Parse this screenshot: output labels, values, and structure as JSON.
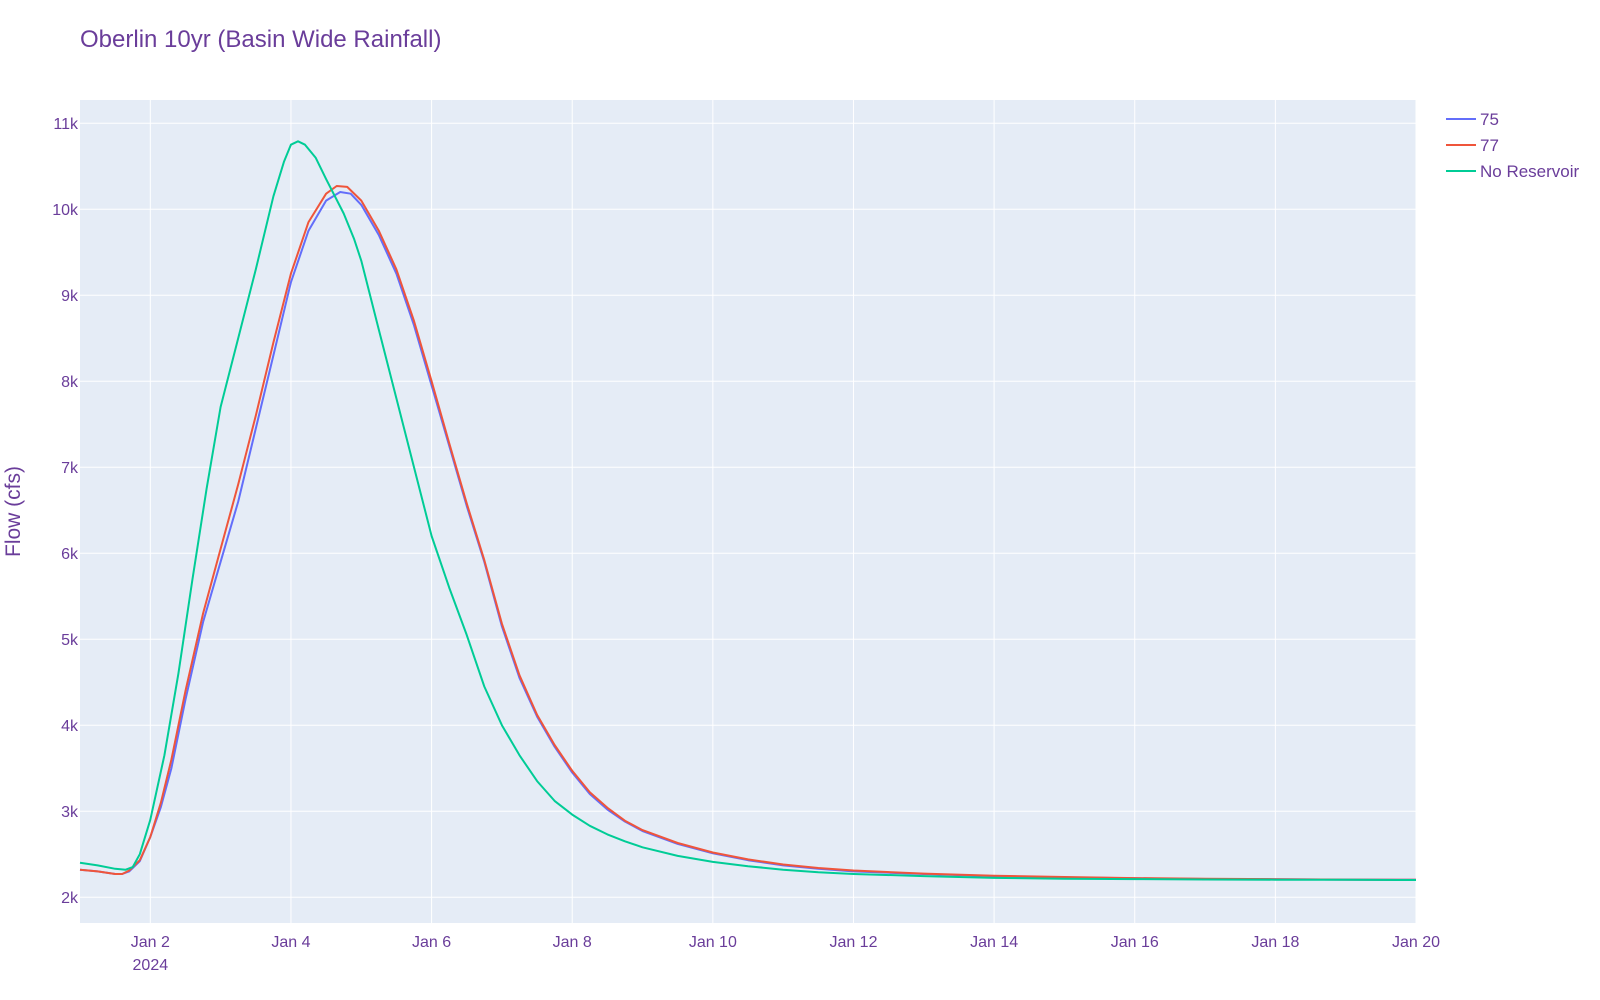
{
  "chart_data": {
    "type": "line",
    "title": "Oberlin 10yr (Basin Wide Rainfall)",
    "ylabel": "Flow (cfs)",
    "xlabel": "",
    "x_unit": "days since 2024-01-01",
    "xlim": [
      0,
      19
    ],
    "ylim": [
      1700,
      11270
    ],
    "x_ticks": [
      {
        "value": 1,
        "label": "Jan 2",
        "sublabel": "2024"
      },
      {
        "value": 3,
        "label": "Jan 4"
      },
      {
        "value": 5,
        "label": "Jan 6"
      },
      {
        "value": 7,
        "label": "Jan 8"
      },
      {
        "value": 9,
        "label": "Jan 10"
      },
      {
        "value": 11,
        "label": "Jan 12"
      },
      {
        "value": 13,
        "label": "Jan 14"
      },
      {
        "value": 15,
        "label": "Jan 16"
      },
      {
        "value": 17,
        "label": "Jan 18"
      },
      {
        "value": 19,
        "label": "Jan 20"
      }
    ],
    "y_ticks": [
      {
        "value": 2000,
        "label": "2k"
      },
      {
        "value": 3000,
        "label": "3k"
      },
      {
        "value": 4000,
        "label": "4k"
      },
      {
        "value": 5000,
        "label": "5k"
      },
      {
        "value": 6000,
        "label": "6k"
      },
      {
        "value": 7000,
        "label": "7k"
      },
      {
        "value": 8000,
        "label": "8k"
      },
      {
        "value": 9000,
        "label": "9k"
      },
      {
        "value": 10000,
        "label": "10k"
      },
      {
        "value": 11000,
        "label": "11k"
      }
    ],
    "grid": true,
    "legend_position": "top-right",
    "series": [
      {
        "name": "75",
        "color": "#636efa",
        "points": [
          [
            0,
            2320
          ],
          [
            0.25,
            2300
          ],
          [
            0.5,
            2270
          ],
          [
            0.6,
            2270
          ],
          [
            0.7,
            2300
          ],
          [
            0.85,
            2420
          ],
          [
            1.0,
            2700
          ],
          [
            1.15,
            3050
          ],
          [
            1.3,
            3500
          ],
          [
            1.5,
            4300
          ],
          [
            1.75,
            5200
          ],
          [
            2.0,
            5900
          ],
          [
            2.25,
            6600
          ],
          [
            2.5,
            7450
          ],
          [
            2.75,
            8300
          ],
          [
            3.0,
            9150
          ],
          [
            3.25,
            9750
          ],
          [
            3.5,
            10100
          ],
          [
            3.7,
            10200
          ],
          [
            3.85,
            10180
          ],
          [
            4.0,
            10050
          ],
          [
            4.25,
            9700
          ],
          [
            4.5,
            9250
          ],
          [
            4.75,
            8650
          ],
          [
            5.0,
            7950
          ],
          [
            5.25,
            7250
          ],
          [
            5.5,
            6550
          ],
          [
            5.75,
            5900
          ],
          [
            6.0,
            5150
          ],
          [
            6.25,
            4550
          ],
          [
            6.5,
            4100
          ],
          [
            6.75,
            3750
          ],
          [
            7.0,
            3450
          ],
          [
            7.25,
            3200
          ],
          [
            7.5,
            3020
          ],
          [
            7.75,
            2880
          ],
          [
            8.0,
            2770
          ],
          [
            8.5,
            2620
          ],
          [
            9.0,
            2510
          ],
          [
            9.5,
            2430
          ],
          [
            10,
            2370
          ],
          [
            10.5,
            2330
          ],
          [
            11,
            2300
          ],
          [
            12,
            2270
          ],
          [
            13,
            2245
          ],
          [
            14,
            2230
          ],
          [
            15,
            2220
          ],
          [
            16,
            2212
          ],
          [
            17,
            2208
          ],
          [
            18,
            2205
          ],
          [
            19,
            2202
          ]
        ]
      },
      {
        "name": "77",
        "color": "#ef553b",
        "points": [
          [
            0,
            2320
          ],
          [
            0.25,
            2300
          ],
          [
            0.5,
            2270
          ],
          [
            0.6,
            2270
          ],
          [
            0.7,
            2310
          ],
          [
            0.85,
            2430
          ],
          [
            1.0,
            2700
          ],
          [
            1.15,
            3100
          ],
          [
            1.3,
            3600
          ],
          [
            1.5,
            4400
          ],
          [
            1.75,
            5300
          ],
          [
            2.0,
            6050
          ],
          [
            2.25,
            6800
          ],
          [
            2.5,
            7600
          ],
          [
            2.75,
            8450
          ],
          [
            3.0,
            9250
          ],
          [
            3.25,
            9850
          ],
          [
            3.5,
            10180
          ],
          [
            3.65,
            10270
          ],
          [
            3.8,
            10260
          ],
          [
            4.0,
            10100
          ],
          [
            4.25,
            9750
          ],
          [
            4.5,
            9300
          ],
          [
            4.75,
            8700
          ],
          [
            5.0,
            8000
          ],
          [
            5.25,
            7280
          ],
          [
            5.5,
            6580
          ],
          [
            5.75,
            5920
          ],
          [
            6.0,
            5180
          ],
          [
            6.25,
            4580
          ],
          [
            6.5,
            4120
          ],
          [
            6.75,
            3770
          ],
          [
            7.0,
            3470
          ],
          [
            7.25,
            3220
          ],
          [
            7.5,
            3040
          ],
          [
            7.75,
            2890
          ],
          [
            8.0,
            2780
          ],
          [
            8.5,
            2630
          ],
          [
            9.0,
            2520
          ],
          [
            9.5,
            2440
          ],
          [
            10,
            2380
          ],
          [
            10.5,
            2340
          ],
          [
            11,
            2310
          ],
          [
            12,
            2275
          ],
          [
            13,
            2250
          ],
          [
            14,
            2235
          ],
          [
            15,
            2222
          ],
          [
            16,
            2214
          ],
          [
            17,
            2209
          ],
          [
            18,
            2205
          ],
          [
            19,
            2202
          ]
        ]
      },
      {
        "name": "No Reservoir",
        "color": "#00cc96",
        "points": [
          [
            0,
            2400
          ],
          [
            0.25,
            2370
          ],
          [
            0.5,
            2330
          ],
          [
            0.65,
            2320
          ],
          [
            0.75,
            2350
          ],
          [
            0.85,
            2500
          ],
          [
            1.0,
            2900
          ],
          [
            1.2,
            3650
          ],
          [
            1.4,
            4600
          ],
          [
            1.6,
            5700
          ],
          [
            1.8,
            6750
          ],
          [
            2.0,
            7700
          ],
          [
            2.25,
            8500
          ],
          [
            2.5,
            9300
          ],
          [
            2.75,
            10150
          ],
          [
            2.9,
            10550
          ],
          [
            3.0,
            10750
          ],
          [
            3.1,
            10790
          ],
          [
            3.2,
            10750
          ],
          [
            3.35,
            10600
          ],
          [
            3.5,
            10350
          ],
          [
            3.75,
            9950
          ],
          [
            3.9,
            9650
          ],
          [
            4.0,
            9400
          ],
          [
            4.25,
            8600
          ],
          [
            4.5,
            7800
          ],
          [
            4.75,
            7000
          ],
          [
            5.0,
            6200
          ],
          [
            5.25,
            5600
          ],
          [
            5.5,
            5050
          ],
          [
            5.75,
            4450
          ],
          [
            6.0,
            4000
          ],
          [
            6.25,
            3650
          ],
          [
            6.5,
            3350
          ],
          [
            6.75,
            3120
          ],
          [
            7.0,
            2960
          ],
          [
            7.25,
            2830
          ],
          [
            7.5,
            2730
          ],
          [
            7.75,
            2650
          ],
          [
            8.0,
            2580
          ],
          [
            8.5,
            2480
          ],
          [
            9.0,
            2410
          ],
          [
            9.5,
            2360
          ],
          [
            10,
            2320
          ],
          [
            10.5,
            2290
          ],
          [
            11,
            2270
          ],
          [
            12,
            2245
          ],
          [
            13,
            2225
          ],
          [
            14,
            2215
          ],
          [
            15,
            2210
          ],
          [
            16,
            2206
          ],
          [
            17,
            2204
          ],
          [
            18,
            2202
          ],
          [
            19,
            2200
          ]
        ]
      }
    ]
  },
  "plot_background": "#e5ecf6",
  "grid_color": "#ffffff",
  "text_color": "#6a3d9a"
}
